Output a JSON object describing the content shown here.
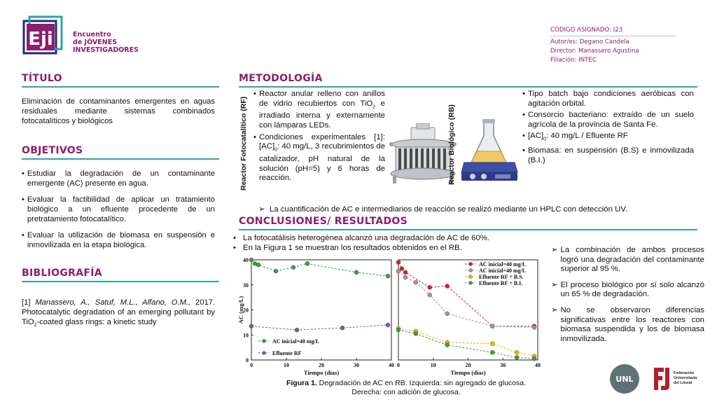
{
  "header": {
    "logo_text": [
      "Encuentro",
      "de JÓVENES",
      "INVESTIGADORES"
    ],
    "code": "CÓDIGO ASIGNADO: I23",
    "author": "Autor/es: Degano Candela",
    "director": "Director: Manassero Agustina",
    "affiliation": "Filiación: INTEC"
  },
  "titulo": {
    "heading": "TÍTULO",
    "text": "Eliminación de contaminantes emergentes en aguas residuales mediante sistemas combinados fotocatalíticos y biológicos"
  },
  "objetivos": {
    "heading": "OBJETIVOS",
    "items": [
      "Estudiar la degradación de un contaminante emergente (AC) presente en agua.",
      "Evaluar la factibilidad de aplicar un tratamiento biológico a un efluente procedente de un pretratamiento fotocatalítico.",
      "Evaluar la utilización de biomasa en suspensión e inmovilizada en la etapa biológica."
    ]
  },
  "bibliografia": {
    "heading": "BIBLIOGRAFÍA",
    "ref_num": "[1]",
    "ref_authors": "Manassero, A., Satuf, M.L., Alfano, O.M.,",
    "ref_rest_1": "2017. Photocatalytic degradation of an emerging pollutant by TiO",
    "ref_sub": "2",
    "ref_rest_2": "-coated glass rings: a kinetic study"
  },
  "metodologia": {
    "heading": "METODOLOGÍA",
    "rf_label": "Reactor Fotocatalítico (RF)",
    "rb_label": "Reactor Biológico (RB)",
    "rf_item1_a": "Reactor anular relleno con anillos de vidrio recubiertos con TiO",
    "rf_item1_sub": "2",
    "rf_item1_b": " e irradiado interna y externamente con lámparas LEDs.",
    "rf_item2_a": "Condiciones experimentales [1]: [AC]",
    "rf_item2_sub": "0",
    "rf_item2_b": ": 40 mg/L, 3 recubrimientos de catalizador, pH natural de la solución (pH=5) y 6 horas de reacción.",
    "rb_item1": "Tipo batch bajo condiciones aeróbicas con agitación orbital.",
    "rb_item2": "Consorcio bacteriano: extraído de un suelo agrícola de la provincia de Santa Fe.",
    "rb_item3_a": "[AC]",
    "rb_item3_sub": "0",
    "rb_item3_b": ": 40 mg/L / Efluente RF",
    "rb_item4": "Biomasa: en suspensión (B.S) e inmovilizada (B.I.)",
    "hplc": "La cuantificación de AC e intermediarios de reacción se realizó mediante un HPLC con detección UV."
  },
  "resultados": {
    "heading": "CONCLUSIONES/ RESULTADOS",
    "items": [
      "La fotocatálisis heterogénea alcanzó una degradación de AC de 60%.",
      "En la Figura 1 se muestran los resultados obtenidos en el RB."
    ],
    "conclusions": [
      "La combinación de ambos procesos logró una degradación del contaminante superior al 95 %.",
      "El proceso biológico por sí solo alcanzó un 65 % de degradación.",
      "No se observaron diferencias significativas entre los reactores con biomasa suspendida y los de biomasa inmovilizada."
    ],
    "caption_bold": "Figura 1.",
    "caption_1": " Degradación de AC en RB. Izquierda: sin agregado de glucosa.",
    "caption_2": "Derecha:  con adición de glucosa."
  },
  "footer": {
    "unl": "UNL",
    "fue": [
      "Federación",
      "Universitaria",
      "del Litoral"
    ]
  },
  "chart_data": [
    {
      "type": "line",
      "xlabel": "Tiempo (días)",
      "ylabel": "AC (mg/L)",
      "xlim": [
        0,
        40
      ],
      "ylim": [
        0,
        40
      ],
      "xticks": [
        0,
        10,
        20,
        30,
        40
      ],
      "yticks": [
        0,
        10,
        20,
        30,
        40
      ],
      "series": [
        {
          "name": "AC inicial=40 mg/L",
          "color": "#3aa040",
          "x": [
            0,
            1,
            2,
            7,
            12,
            16,
            30,
            39
          ],
          "y": [
            40,
            38.5,
            38,
            35.5,
            37,
            38.5,
            35,
            33.5
          ]
        },
        {
          "name": "Efluente RF",
          "color": "#7b5ea7",
          "x": [
            0,
            13,
            26,
            39
          ],
          "y": [
            13.5,
            12,
            12.8,
            14
          ]
        }
      ]
    },
    {
      "type": "line",
      "xlabel": "Tiempo (días)",
      "xlim": [
        0,
        40
      ],
      "ylim": [
        0,
        40
      ],
      "xticks": [
        0,
        10,
        20,
        30,
        40
      ],
      "series": [
        {
          "name": "AC inicial=40 mg/L",
          "color": "#d62020",
          "x": [
            0,
            1,
            2,
            9,
            14,
            27,
            39
          ],
          "y": [
            39,
            36.5,
            35,
            29,
            29.5,
            13.5,
            13.5
          ]
        },
        {
          "name": "AC inicial=40 mg/L",
          "color": "#9a9a9a",
          "x": [
            0,
            2,
            5,
            9,
            14,
            27,
            39
          ],
          "y": [
            35.5,
            33,
            31,
            26,
            18.5,
            13.5,
            13
          ]
        },
        {
          "name": "Efluente RF + B.S.",
          "color": "#f0b400",
          "x": [
            0,
            5,
            14,
            27,
            34,
            39
          ],
          "y": [
            12.5,
            11.5,
            7,
            6.5,
            3,
            1.5
          ]
        },
        {
          "name": "Efluente RF + B.I.",
          "color": "#3aa040",
          "x": [
            0,
            5,
            14,
            27,
            34,
            39
          ],
          "y": [
            12,
            10.5,
            6,
            3,
            1,
            0.5
          ]
        }
      ]
    }
  ]
}
